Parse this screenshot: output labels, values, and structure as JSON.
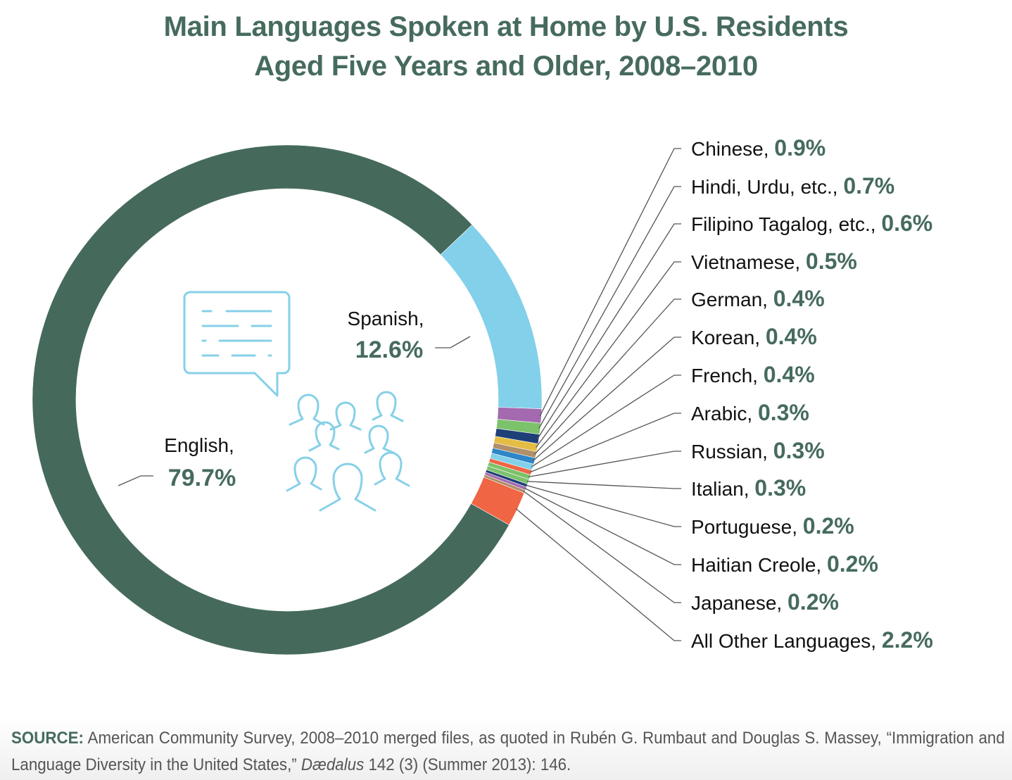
{
  "title": {
    "line1": "Main Languages Spoken at Home by U.S. Residents",
    "line2": "Aged Five Years and Older, 2008–2010"
  },
  "chart_data": {
    "type": "pie",
    "subtype": "donut",
    "title": "Main Languages Spoken at Home by U.S. Residents Aged Five Years and Older, 2008–2010",
    "unit": "%",
    "start_angle_deg": 46.6,
    "direction": "clockwise",
    "slices": [
      {
        "label": "Spanish",
        "value": 12.6,
        "color": "#82d0ea"
      },
      {
        "label": "Chinese",
        "value": 0.9,
        "color": "#a36ab0"
      },
      {
        "label": "Hindi, Urdu, etc.",
        "value": 0.7,
        "color": "#7bc26a"
      },
      {
        "label": "Filipino Tagalog, etc.",
        "value": 0.6,
        "color": "#1e3f77"
      },
      {
        "label": "Vietnamese",
        "value": 0.5,
        "color": "#e5bd45"
      },
      {
        "label": "German",
        "value": 0.4,
        "color": "#b08f6a"
      },
      {
        "label": "Korean",
        "value": 0.4,
        "color": "#2f86c8"
      },
      {
        "label": "French",
        "value": 0.4,
        "color": "#82d0ea"
      },
      {
        "label": "Arabic",
        "value": 0.3,
        "color": "#f06544"
      },
      {
        "label": "Russian",
        "value": 0.3,
        "color": "#7bc26a"
      },
      {
        "label": "Italian",
        "value": 0.3,
        "color": "#7bc26a"
      },
      {
        "label": "Portuguese",
        "value": 0.2,
        "color": "#1e3f77"
      },
      {
        "label": "Haitian Creole",
        "value": 0.2,
        "color": "#a36ab0"
      },
      {
        "label": "Japanese",
        "value": 0.2,
        "color": "#b08f6a"
      },
      {
        "label": "All Other Languages",
        "value": 2.2,
        "color": "#f06544"
      },
      {
        "label": "English",
        "value": 79.7,
        "color": "#456a5b"
      }
    ],
    "labels_inside": [
      {
        "label": "Spanish,",
        "value": "12.6%"
      },
      {
        "label": "English,",
        "value": "79.7%"
      }
    ],
    "labels_right": [
      {
        "label": "Chinese,",
        "value": "0.9%"
      },
      {
        "label": "Hindi, Urdu, etc.,",
        "value": "0.7%"
      },
      {
        "label": "Filipino Tagalog, etc.,",
        "value": "0.6%"
      },
      {
        "label": "Vietnamese,",
        "value": "0.5%"
      },
      {
        "label": "German,",
        "value": "0.4%"
      },
      {
        "label": "Korean,",
        "value": "0.4%"
      },
      {
        "label": "French,",
        "value": "0.4%"
      },
      {
        "label": "Arabic,",
        "value": "0.3%"
      },
      {
        "label": "Russian,",
        "value": "0.3%"
      },
      {
        "label": "Italian,",
        "value": "0.3%"
      },
      {
        "label": "Portuguese,",
        "value": "0.2%"
      },
      {
        "label": "Haitian Creole,",
        "value": "0.2%"
      },
      {
        "label": "Japanese,",
        "value": "0.2%"
      },
      {
        "label": "All Other Languages,",
        "value": "2.2%"
      }
    ],
    "legend_position": "right (leader lines)",
    "center_icons": [
      "speech-bubble-icon",
      "people-group-icon"
    ]
  },
  "colors": {
    "title": "#466b5d",
    "value_text": "#466b5d",
    "label_text": "#111111",
    "leader_line": "#555555",
    "icon_stroke": "#86d0e8"
  },
  "source": {
    "prefix": "SOURCE:",
    "text_before_italic": " American Community Survey, 2008–2010 merged files, as quoted in Rubén G. Rumbaut and Douglas S. Massey, “Immigration and Language Diversity in the United States,” ",
    "italic": "Dædalus",
    "text_after_italic": " 142 (3) (Summer 2013): 146."
  }
}
